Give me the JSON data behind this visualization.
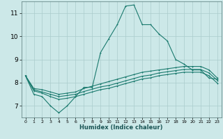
{
  "title": "",
  "xlabel": "Humidex (Indice chaleur)",
  "ylabel": "",
  "background_color": "#cce8e8",
  "grid_color": "#aacccc",
  "line_color": "#1a7a6e",
  "xlim": [
    -0.5,
    23.5
  ],
  "ylim": [
    6.5,
    11.5
  ],
  "yticks": [
    7,
    8,
    9,
    10,
    11
  ],
  "xticks": [
    0,
    1,
    2,
    3,
    4,
    5,
    6,
    7,
    8,
    9,
    10,
    11,
    12,
    13,
    14,
    15,
    16,
    17,
    18,
    19,
    20,
    21,
    22,
    23
  ],
  "lines": [
    {
      "x": [
        0,
        1,
        2,
        3,
        4,
        5,
        6,
        7,
        8,
        9,
        10,
        11,
        12,
        13,
        14,
        15,
        16,
        17,
        18,
        19,
        20,
        21,
        22,
        23
      ],
      "y": [
        8.3,
        7.5,
        7.4,
        7.0,
        6.7,
        7.0,
        7.4,
        7.8,
        7.8,
        9.3,
        9.9,
        10.5,
        11.3,
        11.35,
        10.5,
        10.5,
        10.1,
        9.8,
        9.0,
        8.8,
        8.55,
        8.55,
        8.2,
        8.15
      ]
    },
    {
      "x": [
        0,
        1,
        2,
        3,
        4,
        5,
        6,
        7,
        8,
        9,
        10,
        11,
        12,
        13,
        14,
        15,
        16,
        17,
        18,
        19,
        20,
        21,
        22,
        23
      ],
      "y": [
        8.3,
        7.75,
        7.7,
        7.6,
        7.5,
        7.55,
        7.6,
        7.75,
        7.85,
        7.95,
        8.05,
        8.15,
        8.25,
        8.35,
        8.45,
        8.5,
        8.55,
        8.6,
        8.65,
        8.7,
        8.7,
        8.7,
        8.55,
        8.2
      ]
    },
    {
      "x": [
        0,
        1,
        2,
        3,
        4,
        5,
        6,
        7,
        8,
        9,
        10,
        11,
        12,
        13,
        14,
        15,
        16,
        17,
        18,
        19,
        20,
        21,
        22,
        23
      ],
      "y": [
        8.3,
        7.7,
        7.6,
        7.5,
        7.4,
        7.45,
        7.5,
        7.62,
        7.72,
        7.82,
        7.88,
        7.98,
        8.08,
        8.18,
        8.28,
        8.33,
        8.42,
        8.47,
        8.52,
        8.57,
        8.57,
        8.57,
        8.42,
        8.1
      ]
    },
    {
      "x": [
        0,
        1,
        2,
        3,
        4,
        5,
        6,
        7,
        8,
        9,
        10,
        11,
        12,
        13,
        14,
        15,
        16,
        17,
        18,
        19,
        20,
        21,
        22,
        23
      ],
      "y": [
        8.3,
        7.65,
        7.55,
        7.4,
        7.28,
        7.33,
        7.4,
        7.5,
        7.6,
        7.7,
        7.76,
        7.86,
        7.96,
        8.06,
        8.16,
        8.21,
        8.3,
        8.35,
        8.4,
        8.45,
        8.45,
        8.45,
        8.3,
        7.98
      ]
    }
  ]
}
